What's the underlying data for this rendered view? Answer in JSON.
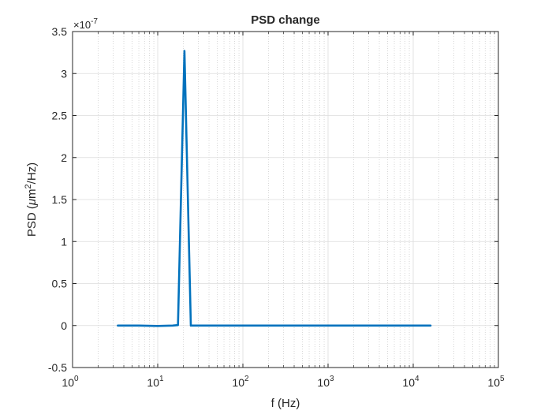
{
  "chart_data": {
    "type": "line",
    "title": "PSD change",
    "xlabel": "f (Hz)",
    "ylabel": {
      "pre": "PSD (",
      "mu": "μ",
      "unit": "m",
      "sup": "2",
      "post": "/Hz)"
    },
    "xscale": "log",
    "xlim": [
      1,
      100000
    ],
    "ylim": [
      -0.5,
      3.5
    ],
    "y_multiplier": {
      "base": "×10",
      "exponent": "-7"
    },
    "grid": true,
    "minor_grid": true,
    "xticks": [
      {
        "value": 1,
        "base": "10",
        "exp": "0"
      },
      {
        "value": 10,
        "base": "10",
        "exp": "1"
      },
      {
        "value": 100,
        "base": "10",
        "exp": "2"
      },
      {
        "value": 1000,
        "base": "10",
        "exp": "3"
      },
      {
        "value": 10000,
        "base": "10",
        "exp": "4"
      },
      {
        "value": 100000,
        "base": "10",
        "exp": "5"
      }
    ],
    "yticks": [
      {
        "value": -0.5,
        "label": "-0.5"
      },
      {
        "value": 0,
        "label": "0"
      },
      {
        "value": 0.5,
        "label": "0.5"
      },
      {
        "value": 1,
        "label": "1"
      },
      {
        "value": 1.5,
        "label": "1.5"
      },
      {
        "value": 2,
        "label": "2"
      },
      {
        "value": 2.5,
        "label": "2.5"
      },
      {
        "value": 3,
        "label": "3"
      },
      {
        "value": 3.5,
        "label": "3.5"
      }
    ],
    "series": [
      {
        "color": "#0072BD",
        "x": [
          3.4,
          6.0,
          10.0,
          15.0,
          17.3,
          20.6,
          24.5,
          50,
          100,
          1000,
          10000,
          16000
        ],
        "y": [
          0,
          0,
          -0.005,
          0,
          0.005,
          3.27,
          0,
          0,
          0,
          0,
          0,
          0
        ]
      }
    ]
  }
}
